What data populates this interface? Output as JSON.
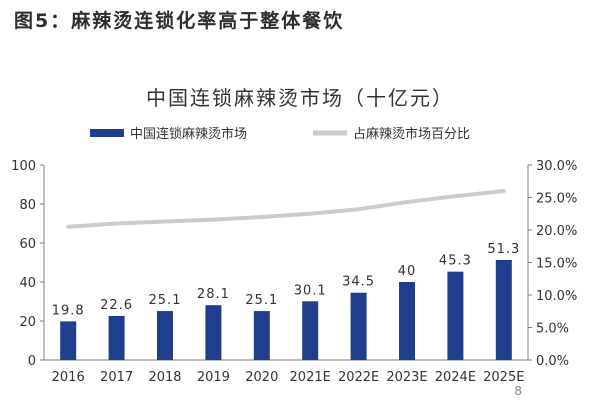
{
  "figure_header": "图5：麻辣烫连锁化率高于整体餐饮",
  "page_number": "8",
  "colors": {
    "bar": "#1f3f8e",
    "line": "#cccccc",
    "axis": "#7f7f7f",
    "text": "#333333",
    "title": "#333333"
  },
  "chart_data": {
    "type": "bar",
    "title": "中国连锁麻辣烫市场（十亿元）",
    "categories": [
      "2016",
      "2017",
      "2018",
      "2019",
      "2020",
      "2021E",
      "2022E",
      "2023E",
      "2024E",
      "2025E"
    ],
    "series": [
      {
        "name": "中国连锁麻辣烫市场",
        "type": "bar",
        "axis": "left",
        "values": [
          19.8,
          22.6,
          25.1,
          28.1,
          25.1,
          30.1,
          34.5,
          40,
          45.3,
          51.3
        ],
        "labels": [
          "19.8",
          "22.6",
          "25.1",
          "28.1",
          "25.1",
          "30.1",
          "34.5",
          "40",
          "45.3",
          "51.3"
        ]
      },
      {
        "name": "占麻辣烫市场百分比",
        "type": "line",
        "axis": "right",
        "values": [
          20.5,
          21.0,
          21.3,
          21.6,
          22.0,
          22.5,
          23.2,
          24.3,
          25.2,
          26.0
        ]
      }
    ],
    "ylim_left": [
      0,
      100
    ],
    "yticks_left": [
      "0",
      "20",
      "40",
      "60",
      "80",
      "100"
    ],
    "ylim_right": [
      0,
      30
    ],
    "yticks_right": [
      "0.0%",
      "5.0%",
      "10.0%",
      "15.0%",
      "20.0%",
      "25.0%",
      "30.0%"
    ],
    "grid": false,
    "legend_position": "top"
  }
}
